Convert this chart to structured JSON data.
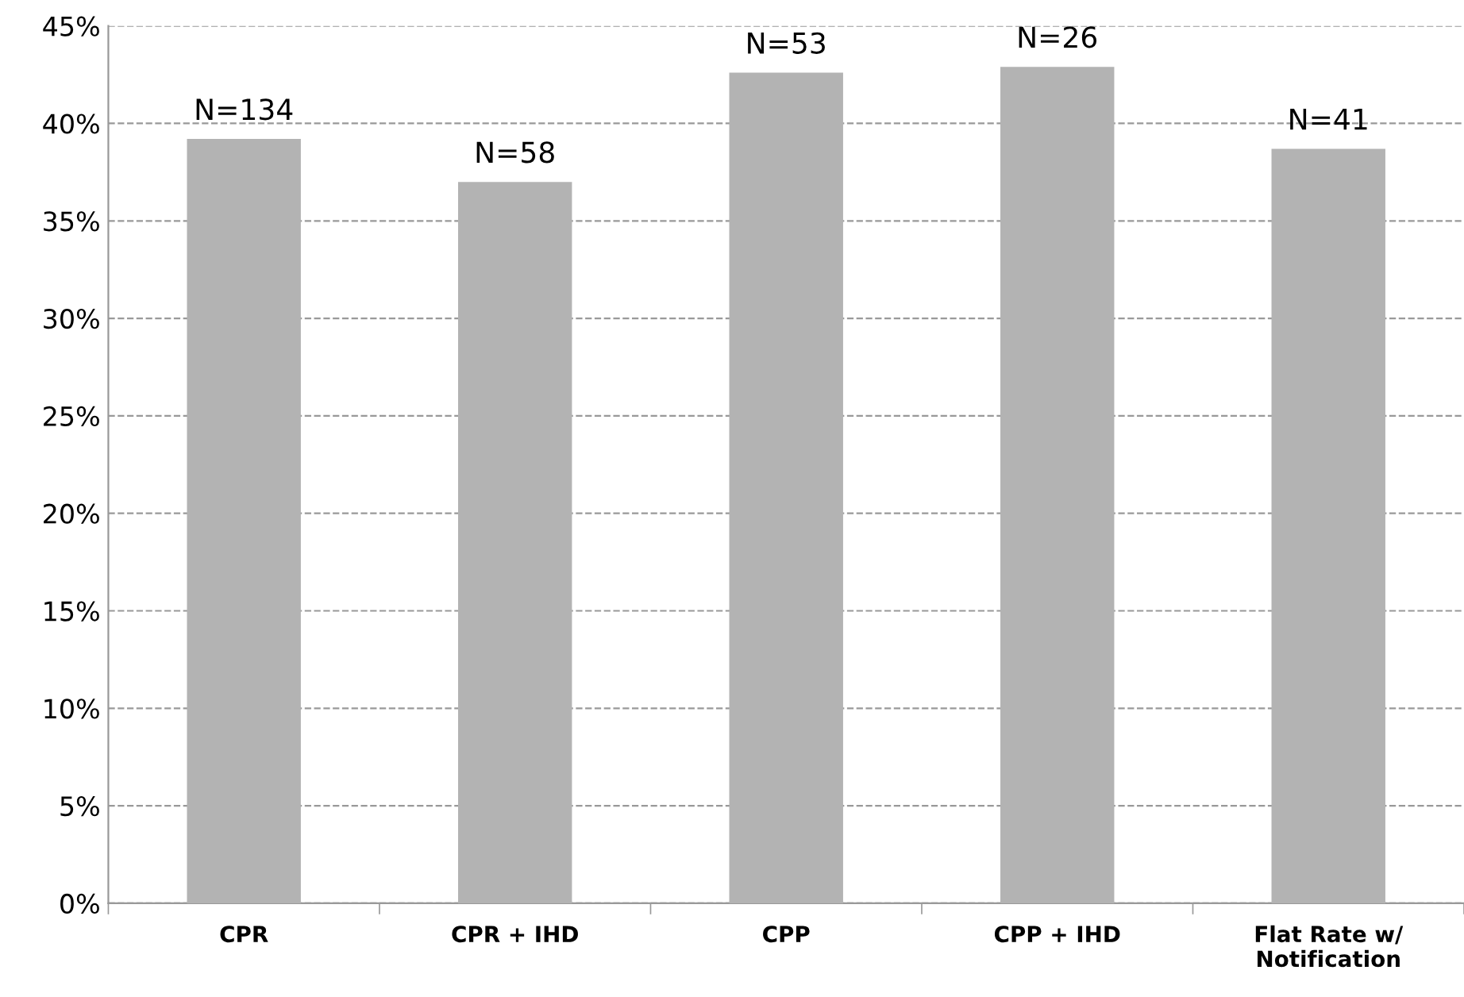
{
  "chart_data": {
    "type": "bar",
    "categories": [
      "CPR",
      "CPR + IHD",
      "CPP",
      "CPP + IHD",
      "Flat Rate w/\nNotification"
    ],
    "values": [
      39.2,
      37.0,
      42.6,
      42.9,
      38.7
    ],
    "annotations": [
      {
        "text": "N=134",
        "x": "CPR",
        "y": 39.2
      },
      {
        "text": "N=58",
        "x": "CPR + IHD",
        "y": 37.0
      },
      {
        "text": "N=53",
        "x": "CPP",
        "y": 42.6
      },
      {
        "text": "N=26",
        "x": "CPP + IHD",
        "y": 42.9
      },
      {
        "text": "N=41",
        "x": "Flat Rate w/\nNotification",
        "y": 38.7
      }
    ],
    "color": "#b3b3b3",
    "ylim": [
      0,
      45
    ],
    "yticks": [
      {
        "value": 0,
        "label": "0%"
      },
      {
        "value": 5,
        "label": "5%"
      },
      {
        "value": 10,
        "label": "10%"
      },
      {
        "value": 15,
        "label": "15%"
      },
      {
        "value": 20,
        "label": "20%"
      },
      {
        "value": 25,
        "label": "25%"
      },
      {
        "value": 30,
        "label": "30%"
      },
      {
        "value": 35,
        "label": "35%"
      },
      {
        "value": 40,
        "label": "40%"
      },
      {
        "value": 45,
        "label": "45%"
      }
    ],
    "grid": "y",
    "line_style": "dashed"
  }
}
